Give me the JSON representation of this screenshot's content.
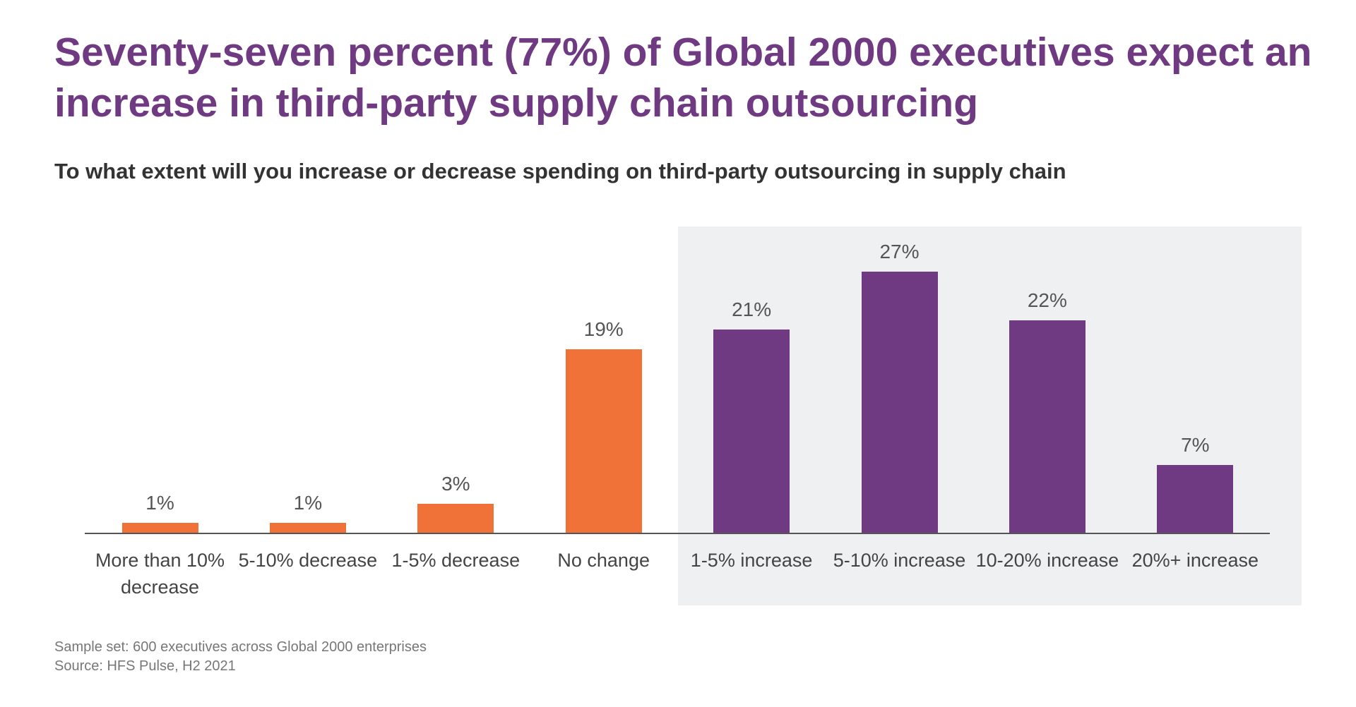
{
  "chart_data": {
    "type": "bar",
    "title": "Seventy-seven percent (77%) of Global 2000 executives expect an increase in third-party supply chain outsourcing",
    "subtitle": "To what extent will you increase or decrease spending on third-party outsourcing in supply chain",
    "categories": [
      "More than 10% decrease",
      "5-10% decrease",
      "1-5% decrease",
      "No change",
      "1-5% increase",
      "5-10% increase",
      "10-20% increase",
      "20%+ increase"
    ],
    "values": [
      1,
      1,
      3,
      19,
      21,
      27,
      22,
      7
    ],
    "value_labels": [
      "1%",
      "1%",
      "3%",
      "19%",
      "21%",
      "27%",
      "22%",
      "7%"
    ],
    "colors": [
      "#f07238",
      "#f07238",
      "#f07238",
      "#f07238",
      "#6f3a82",
      "#6f3a82",
      "#6f3a82",
      "#6f3a82"
    ],
    "notes": [
      "Sample set: 600 executives across Global 2000 enterprises",
      "Source: HFS Pulse, H2 2021"
    ]
  }
}
